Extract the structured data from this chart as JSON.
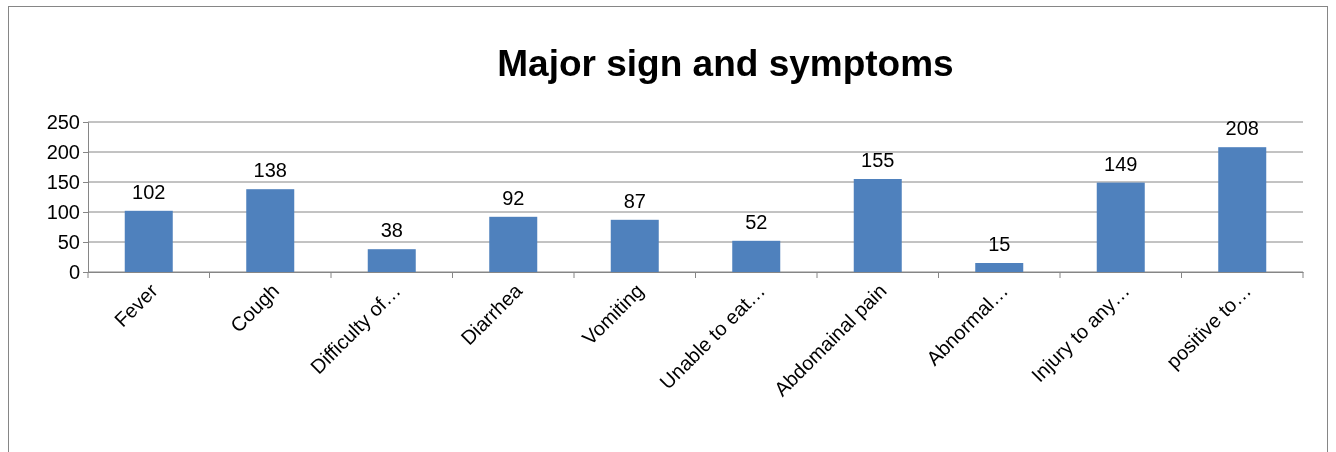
{
  "chart_data": {
    "type": "bar",
    "title": "Major sign and symptoms",
    "categories": [
      "Fever",
      "Cough",
      "Difficulty of…",
      "Diarrhea",
      "Vomiting",
      "Unable to eat…",
      "Abdomainal pain",
      "Abnormal…",
      "Injury to any…",
      "positive to…"
    ],
    "values": [
      102,
      138,
      38,
      92,
      87,
      52,
      155,
      15,
      149,
      208
    ],
    "color": "#4f81bd",
    "ylim": [
      0,
      250
    ],
    "yticks": [
      0,
      50,
      100,
      150,
      200,
      250
    ],
    "grid": "y",
    "data_labels": true
  }
}
